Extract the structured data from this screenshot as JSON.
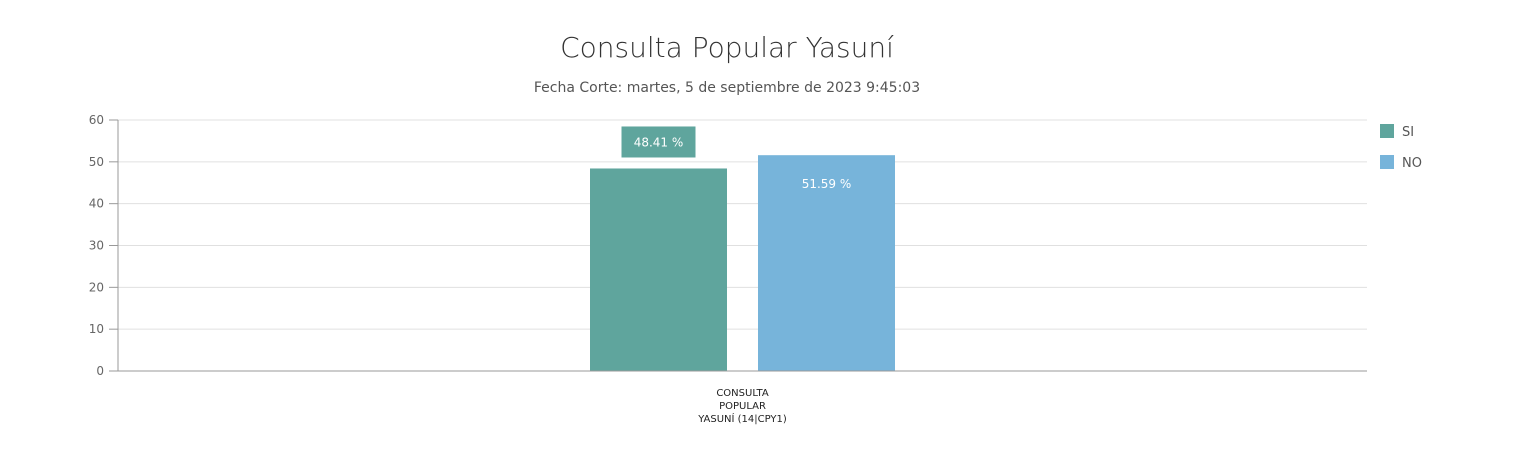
{
  "chart_data": {
    "type": "bar",
    "title": "Consulta Popular Yasuní",
    "subtitle": "Fecha Corte: martes, 5 de septiembre de 2023 9:45:03",
    "categories": [
      [
        "CONSULTA",
        "POPULAR",
        "YASUNÍ (14|CPY1)"
      ]
    ],
    "series": [
      {
        "name": "SI",
        "color": "#5fa59d",
        "values": [
          48.41
        ],
        "label": "48.41 %"
      },
      {
        "name": "NO",
        "color": "#77b4da",
        "values": [
          51.59
        ],
        "label": "51.59 %"
      }
    ],
    "ylim": [
      0,
      60
    ],
    "yticks": [
      0,
      10,
      20,
      30,
      40,
      50,
      60
    ],
    "grid": true,
    "legend_position": "top-right",
    "xlabel": "",
    "ylabel": ""
  }
}
